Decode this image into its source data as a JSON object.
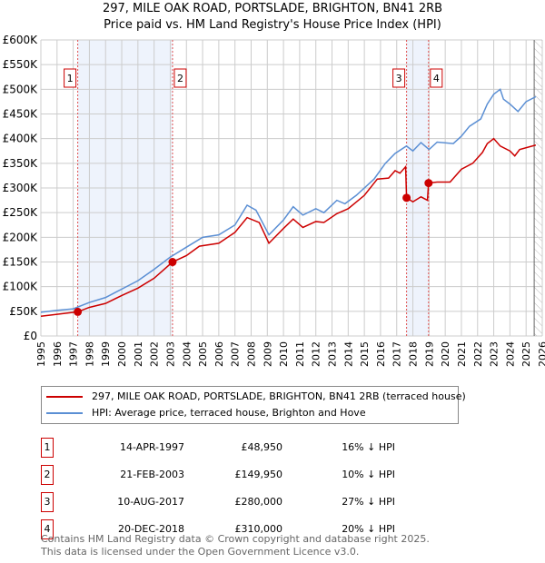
{
  "chart_data": {
    "type": "line",
    "title": "297, MILE OAK ROAD, PORTSLADE, BRIGHTON, BN41 2RB",
    "subtitle": "Price paid vs. HM Land Registry's House Price Index (HPI)",
    "xlim": [
      1995,
      2026
    ],
    "ylim": [
      0,
      600000
    ],
    "x_ticks": [
      "1995",
      "1996",
      "1997",
      "1998",
      "1999",
      "2000",
      "2001",
      "2002",
      "2003",
      "2004",
      "2005",
      "2006",
      "2007",
      "2008",
      "2009",
      "2010",
      "2011",
      "2012",
      "2013",
      "2014",
      "2015",
      "2016",
      "2017",
      "2018",
      "2019",
      "2020",
      "2021",
      "2022",
      "2023",
      "2024",
      "2025",
      "2026"
    ],
    "y_ticks": [
      {
        "v": 0,
        "label": "£0"
      },
      {
        "v": 50000,
        "label": "£50K"
      },
      {
        "v": 100000,
        "label": "£100K"
      },
      {
        "v": 150000,
        "label": "£150K"
      },
      {
        "v": 200000,
        "label": "£200K"
      },
      {
        "v": 250000,
        "label": "£250K"
      },
      {
        "v": 300000,
        "label": "£300K"
      },
      {
        "v": 350000,
        "label": "£350K"
      },
      {
        "v": 400000,
        "label": "£400K"
      },
      {
        "v": 450000,
        "label": "£450K"
      },
      {
        "v": 500000,
        "label": "£500K"
      },
      {
        "v": 550000,
        "label": "£550K"
      },
      {
        "v": 600000,
        "label": "£600K"
      }
    ],
    "grid": true,
    "shaded_ranges": [
      [
        1997.28,
        2003.14
      ],
      [
        2017.61,
        2018.97
      ]
    ],
    "forecast_from": 2025.5,
    "series": [
      {
        "name": "297, MILE OAK ROAD, PORTSLADE, BRIGHTON, BN41 2RB (terraced house)",
        "color": "#cc0000",
        "x": [
          1995,
          1996,
          1997.28,
          1998,
          1999,
          2000,
          2001,
          2002,
          2003.14,
          2004,
          2004.8,
          2006,
          2007,
          2007.75,
          2008.5,
          2009.1,
          2010,
          2010.6,
          2011.2,
          2012,
          2012.5,
          2013.3,
          2014,
          2015,
          2015.8,
          2016.5,
          2016.9,
          2017.2,
          2017.55,
          2017.61,
          2018,
          2018.5,
          2018.9,
          2018.97,
          2019.5,
          2020.3,
          2021,
          2021.7,
          2022.3,
          2022.6,
          2023,
          2023.4,
          2024,
          2024.3,
          2024.6,
          2025.6
        ],
        "y": [
          40000,
          44000,
          48950,
          58000,
          66000,
          82000,
          97000,
          117000,
          149950,
          163000,
          182000,
          188000,
          210000,
          240000,
          230000,
          188000,
          218000,
          237000,
          220000,
          232000,
          230000,
          248000,
          258000,
          285000,
          318000,
          320000,
          335000,
          330000,
          343000,
          280000,
          272000,
          282000,
          275000,
          310000,
          312000,
          312000,
          338000,
          350000,
          372000,
          390000,
          400000,
          385000,
          375000,
          365000,
          378000,
          387000
        ]
      },
      {
        "name": "HPI: Average price, terraced house, Brighton and Hove",
        "color": "#5b8fd4",
        "x": [
          1995,
          1996,
          1997,
          1998,
          1999,
          2000,
          2001,
          2002,
          2003,
          2004,
          2005,
          2006,
          2007,
          2007.75,
          2008.3,
          2009.1,
          2010,
          2010.6,
          2011.2,
          2012,
          2012.5,
          2013.3,
          2013.8,
          2014.5,
          2015,
          2015.6,
          2016.3,
          2016.9,
          2017.6,
          2018,
          2018.5,
          2019,
          2019.5,
          2020.5,
          2021,
          2021.5,
          2022.2,
          2022.6,
          2023,
          2023.4,
          2023.6,
          2024,
          2024.5,
          2025,
          2025.6
        ],
        "y": [
          48000,
          52000,
          55000,
          68000,
          78000,
          95000,
          112000,
          135000,
          160000,
          180000,
          200000,
          205000,
          225000,
          265000,
          255000,
          205000,
          235000,
          262000,
          245000,
          258000,
          250000,
          275000,
          268000,
          285000,
          300000,
          318000,
          350000,
          370000,
          385000,
          375000,
          392000,
          378000,
          393000,
          390000,
          405000,
          425000,
          440000,
          470000,
          490000,
          500000,
          480000,
          470000,
          455000,
          475000,
          485000
        ]
      }
    ],
    "sales": [
      {
        "n": "1",
        "x": 1997.28,
        "y": 48950,
        "date": "14-APR-1997",
        "price": "£48,950",
        "hpi": "16% ↓ HPI"
      },
      {
        "n": "2",
        "x": 2003.14,
        "y": 149950,
        "date": "21-FEB-2003",
        "price": "£149,950",
        "hpi": "10% ↓ HPI"
      },
      {
        "n": "3",
        "x": 2017.61,
        "y": 280000,
        "date": "10-AUG-2017",
        "price": "£280,000",
        "hpi": "27% ↓ HPI"
      },
      {
        "n": "4",
        "x": 2018.97,
        "y": 310000,
        "date": "20-DEC-2018",
        "price": "£310,000",
        "hpi": "20% ↓ HPI"
      }
    ]
  },
  "footer": [
    "Contains HM Land Registry data © Crown copyright and database right 2025.",
    "This data is licensed under the Open Government Licence v3.0."
  ]
}
